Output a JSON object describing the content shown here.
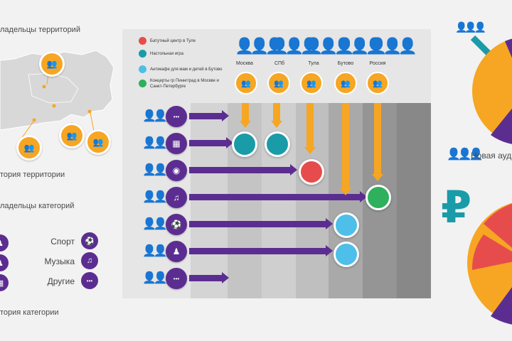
{
  "left": {
    "territory_owners": "ладельцы  территорий",
    "territory_history": "тория территории",
    "category_owners": "ладельцы  категорий",
    "category_history": "тория категории",
    "categories": [
      {
        "label": "Спорт",
        "icon": "ball-icon",
        "glyph": "⚽"
      },
      {
        "label": "Музыка",
        "icon": "music-note-icon",
        "glyph": "♫"
      },
      {
        "label": "Другие",
        "icon": "more-dots-icon",
        "glyph": "•••"
      }
    ]
  },
  "legend": [
    {
      "label": "Батутный центр в Туле",
      "color": "#e74c4c"
    },
    {
      "label": "Настольная игра",
      "color": "#1a9ba8"
    },
    {
      "label": "Антикафе для мам и детей в Бутово",
      "color": "#4dbfe8"
    },
    {
      "label": "Концерты гр Пиннгград в Москве и Санкт-Петербурге",
      "color": "#2eb05c"
    }
  ],
  "columns": [
    {
      "label": "Москва"
    },
    {
      "label": "СПб"
    },
    {
      "label": "Тула"
    },
    {
      "label": "Бутово"
    },
    {
      "label": "Россия"
    }
  ],
  "rows": [
    {
      "icon": "more-dots-icon",
      "glyph": "•••"
    },
    {
      "icon": "chess-board-icon",
      "glyph": "▦"
    },
    {
      "icon": "trampoline-icon",
      "glyph": "◉"
    },
    {
      "icon": "music-note-icon",
      "glyph": "♫"
    },
    {
      "icon": "ball-icon",
      "glyph": "⚽"
    },
    {
      "icon": "mother-child-icon",
      "glyph": "♟"
    },
    {
      "icon": "more-dots-icon",
      "glyph": "•••"
    }
  ],
  "right": {
    "new_audience": "Новая ауди",
    "currency_symbol": "₽"
  },
  "colors": {
    "purple": "#5c2d91",
    "orange": "#f6a623",
    "teal": "#1a9ba8",
    "red": "#e74c4c",
    "light_blue": "#4dbfe8",
    "green": "#2eb05c"
  }
}
